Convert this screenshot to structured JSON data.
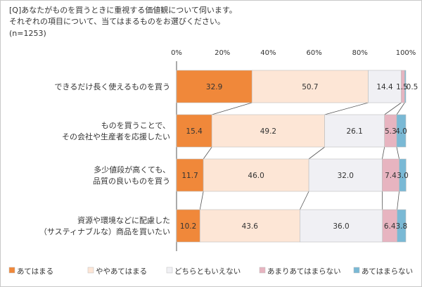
{
  "header": {
    "question_line1": "[Q]あなたがものを買うときに重視する価値観について伺います。",
    "question_line2": "それぞれの項目について、当てはまるものをお選びください。",
    "sample_size": "(n=1253)"
  },
  "colors": {
    "series": [
      "#f0883a",
      "#fde6d6",
      "#f0f0f4",
      "#e7b4c0",
      "#7ab9d5"
    ],
    "bar_border": "#bdbdbd",
    "connector": "#555555",
    "text": "#333333"
  },
  "chart_data": {
    "type": "bar",
    "orientation": "horizontal",
    "stacked": true,
    "xlim": [
      0,
      100
    ],
    "x_ticks": [
      "0%",
      "20%",
      "40%",
      "60%",
      "80%",
      "100%"
    ],
    "categories": [
      [
        "できるだけ長く使えるものを買う"
      ],
      [
        "ものを買うことで、",
        "その会社や生産者を応援したい"
      ],
      [
        "多少値段が高くても、",
        "品質の良いものを買う"
      ],
      [
        "資源や環境などに配慮した",
        "（サスティナブルな）商品を買いたい"
      ]
    ],
    "series": [
      {
        "name": "あてはまる",
        "values": [
          32.9,
          15.4,
          11.7,
          10.2
        ]
      },
      {
        "name": "ややあてはまる",
        "values": [
          50.7,
          49.2,
          46.0,
          43.6
        ]
      },
      {
        "name": "どちらともいえない",
        "values": [
          14.4,
          26.1,
          32.0,
          36.0
        ]
      },
      {
        "name": "あまりあてはまらない",
        "values": [
          1.5,
          5.3,
          7.4,
          6.4
        ]
      },
      {
        "name": "あてはまらない",
        "values": [
          0.5,
          4.0,
          3.0,
          3.8
        ]
      }
    ],
    "value_labels": [
      [
        "32.9",
        "50.7",
        "14.4",
        "1.5",
        "0.5"
      ],
      [
        "15.4",
        "49.2",
        "26.1",
        "5.3",
        "4.0"
      ],
      [
        "11.7",
        "46.0",
        "32.0",
        "7.4",
        "3.0"
      ],
      [
        "10.2",
        "43.6",
        "36.0",
        "6.4",
        "3.8"
      ]
    ],
    "legend": [
      "あてはまる",
      "ややあてはまる",
      "どちらともいえない",
      "あまりあてはまらない",
      "あてはまらない"
    ],
    "legend_position": "bottom",
    "connector_lines": true,
    "grid": false
  }
}
